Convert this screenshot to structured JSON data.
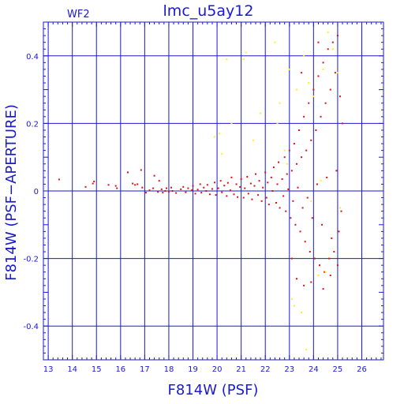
{
  "chart_data": {
    "type": "scatter",
    "title": "lmc_u5ay12",
    "panel_label": "WF2",
    "xlabel": "F814W (PSF)",
    "ylabel": "F814W (PSF−APERTURE)",
    "xlim": [
      12.8,
      26.9
    ],
    "ylim": [
      -0.5,
      0.5
    ],
    "x_ticks": [
      13,
      14,
      15,
      16,
      17,
      18,
      19,
      20,
      21,
      22,
      23,
      24,
      25,
      26
    ],
    "y_ticks": [
      -0.4,
      -0.2,
      0,
      0.2,
      0.4
    ],
    "y_tick_labels": [
      "-0.4",
      "-0.2",
      "0",
      "0.2",
      "0.4"
    ],
    "grid": true,
    "colors": {
      "axis": "#1a1ad0",
      "series_main": "#e01010",
      "series_flagged": "#ffee22"
    },
    "series": [
      {
        "key": "main",
        "points": [
          [
            13.45,
            0.034
          ],
          [
            14.55,
            0.012
          ],
          [
            14.85,
            0.022
          ],
          [
            14.9,
            0.028
          ],
          [
            15.5,
            0.018
          ],
          [
            15.8,
            0.015
          ],
          [
            15.85,
            0.008
          ],
          [
            16.3,
            0.055
          ],
          [
            16.5,
            0.022
          ],
          [
            16.6,
            0.018
          ],
          [
            16.7,
            0.02
          ],
          [
            16.85,
            0.062
          ],
          [
            16.9,
            0.01
          ],
          [
            17.05,
            -0.005
          ],
          [
            17.2,
            0.002
          ],
          [
            17.35,
            0.008
          ],
          [
            17.4,
            0.045
          ],
          [
            17.55,
            -0.003
          ],
          [
            17.6,
            0.03
          ],
          [
            17.7,
            0.005
          ],
          [
            17.75,
            -0.005
          ],
          [
            17.85,
            0.0
          ],
          [
            17.9,
            0.008
          ],
          [
            18.0,
            -0.002
          ],
          [
            18.1,
            0.01
          ],
          [
            18.15,
            0.0
          ],
          [
            18.3,
            -0.006
          ],
          [
            18.5,
            0.005
          ],
          [
            18.6,
            0.012
          ],
          [
            18.7,
            -0.004
          ],
          [
            18.8,
            0.008
          ],
          [
            18.95,
            0.002
          ],
          [
            19.0,
            0.015
          ],
          [
            19.1,
            -0.008
          ],
          [
            19.2,
            0.004
          ],
          [
            19.3,
            0.02
          ],
          [
            19.35,
            -0.005
          ],
          [
            19.45,
            0.01
          ],
          [
            19.55,
            0.0
          ],
          [
            19.6,
            0.018
          ],
          [
            19.7,
            -0.01
          ],
          [
            19.8,
            0.006
          ],
          [
            19.9,
            0.025
          ],
          [
            19.95,
            -0.012
          ],
          [
            20.05,
            0.008
          ],
          [
            20.15,
            0.03
          ],
          [
            20.2,
            -0.004
          ],
          [
            20.3,
            0.016
          ],
          [
            20.4,
            -0.015
          ],
          [
            20.45,
            0.024
          ],
          [
            20.55,
            0.002
          ],
          [
            20.6,
            0.04
          ],
          [
            20.7,
            -0.01
          ],
          [
            20.8,
            0.02
          ],
          [
            20.85,
            -0.018
          ],
          [
            20.95,
            0.012
          ],
          [
            21.0,
            0.035
          ],
          [
            21.1,
            -0.02
          ],
          [
            21.15,
            0.008
          ],
          [
            21.25,
            0.042
          ],
          [
            21.3,
            -0.008
          ],
          [
            21.4,
            0.022
          ],
          [
            21.45,
            -0.025
          ],
          [
            21.55,
            0.015
          ],
          [
            21.6,
            0.05
          ],
          [
            21.7,
            -0.012
          ],
          [
            21.75,
            0.03
          ],
          [
            21.85,
            -0.03
          ],
          [
            21.9,
            0.01
          ],
          [
            22.0,
            0.055
          ],
          [
            22.05,
            -0.02
          ],
          [
            22.1,
            0.025
          ],
          [
            22.15,
            -0.04
          ],
          [
            22.25,
            0.04
          ],
          [
            22.3,
            0.0
          ],
          [
            22.35,
            0.07
          ],
          [
            22.45,
            -0.035
          ],
          [
            22.5,
            0.02
          ],
          [
            22.55,
            0.085
          ],
          [
            22.6,
            -0.05
          ],
          [
            22.7,
            0.035
          ],
          [
            22.75,
            -0.015
          ],
          [
            22.8,
            0.1
          ],
          [
            22.85,
            -0.06
          ],
          [
            22.9,
            0.05
          ],
          [
            22.95,
            0.005
          ],
          [
            23.0,
            0.12
          ],
          [
            23.05,
            -0.08
          ],
          [
            23.1,
            0.06
          ],
          [
            23.15,
            -0.03
          ],
          [
            23.2,
            0.14
          ],
          [
            23.25,
            -0.1
          ],
          [
            23.3,
            0.08
          ],
          [
            23.35,
            0.01
          ],
          [
            23.4,
            0.18
          ],
          [
            23.45,
            -0.12
          ],
          [
            23.5,
            0.1
          ],
          [
            23.55,
            -0.05
          ],
          [
            23.6,
            0.22
          ],
          [
            23.65,
            -0.15
          ],
          [
            23.7,
            0.12
          ],
          [
            23.75,
            -0.02
          ],
          [
            23.8,
            0.26
          ],
          [
            23.85,
            -0.18
          ],
          [
            23.9,
            0.15
          ],
          [
            23.95,
            -0.08
          ],
          [
            24.0,
            0.3
          ],
          [
            24.05,
            -0.2
          ],
          [
            24.1,
            0.18
          ],
          [
            24.15,
            0.02
          ],
          [
            24.2,
            0.34
          ],
          [
            24.25,
            -0.22
          ],
          [
            24.3,
            0.22
          ],
          [
            24.35,
            -0.1
          ],
          [
            24.4,
            0.38
          ],
          [
            24.45,
            -0.24
          ],
          [
            24.5,
            0.26
          ],
          [
            24.55,
            0.04
          ],
          [
            24.6,
            0.42
          ],
          [
            24.65,
            -0.2
          ],
          [
            24.7,
            0.3
          ],
          [
            24.75,
            -0.14
          ],
          [
            24.8,
            0.44
          ],
          [
            24.85,
            -0.18
          ],
          [
            24.9,
            0.35
          ],
          [
            24.95,
            0.06
          ],
          [
            25.0,
            0.46
          ],
          [
            25.05,
            -0.12
          ],
          [
            25.1,
            0.28
          ],
          [
            25.15,
            -0.06
          ],
          [
            25.2,
            0.2
          ],
          [
            23.1,
            -0.2
          ],
          [
            23.3,
            -0.26
          ],
          [
            23.6,
            -0.28
          ],
          [
            23.9,
            -0.27
          ],
          [
            24.4,
            -0.29
          ],
          [
            24.7,
            -0.25
          ],
          [
            25.0,
            -0.22
          ],
          [
            24.2,
            0.44
          ],
          [
            23.5,
            0.35
          ]
        ]
      },
      {
        "key": "flagged",
        "points": [
          [
            19.9,
            0.16
          ],
          [
            20.1,
            0.17
          ],
          [
            20.2,
            0.11
          ],
          [
            20.4,
            0.39
          ],
          [
            20.6,
            0.2
          ],
          [
            21.1,
            0.39
          ],
          [
            21.2,
            0.41
          ],
          [
            21.8,
            0.23
          ],
          [
            22.4,
            0.44
          ],
          [
            22.5,
            0.2
          ],
          [
            22.6,
            0.26
          ],
          [
            22.8,
            0.12
          ],
          [
            23.0,
            0.36
          ],
          [
            23.1,
            -0.32
          ],
          [
            23.2,
            -0.34
          ],
          [
            23.3,
            0.3
          ],
          [
            23.5,
            -0.36
          ],
          [
            23.6,
            0.4
          ],
          [
            23.7,
            -0.47
          ],
          [
            23.8,
            0.32
          ],
          [
            24.0,
            0.28
          ],
          [
            24.2,
            -0.25
          ],
          [
            24.4,
            0.36
          ],
          [
            24.5,
            -0.24
          ],
          [
            24.6,
            0.47
          ],
          [
            24.8,
            0.42
          ],
          [
            25.0,
            0.35
          ],
          [
            25.1,
            -0.05
          ],
          [
            24.3,
            0.03
          ],
          [
            23.9,
            -0.03
          ],
          [
            22.9,
            0.08
          ],
          [
            21.5,
            0.15
          ]
        ]
      }
    ]
  }
}
